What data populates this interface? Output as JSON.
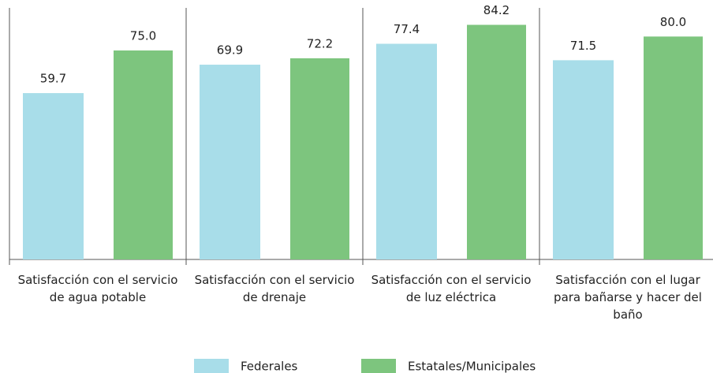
{
  "chart_data": {
    "type": "bar",
    "categories": [
      "Satisfacción con el servicio de agua potable",
      "Satisfacción con el servicio de drenaje",
      "Satisfacción con el servicio de luz eléctrica",
      "Satisfacción con el lugar para bañarse y hacer del baño"
    ],
    "series": [
      {
        "name": "Federales",
        "color": "#a8dde9",
        "values": [
          59.7,
          69.9,
          77.4,
          71.5
        ]
      },
      {
        "name": "Estatales/Municipales",
        "color": "#7dc57e",
        "values": [
          75.0,
          72.2,
          84.2,
          80.0
        ],
        "value_labels": [
          "75.0",
          "72.2",
          "84.2",
          "80.0"
        ]
      }
    ],
    "ylim": [
      0,
      90
    ],
    "legend": "bottom"
  }
}
